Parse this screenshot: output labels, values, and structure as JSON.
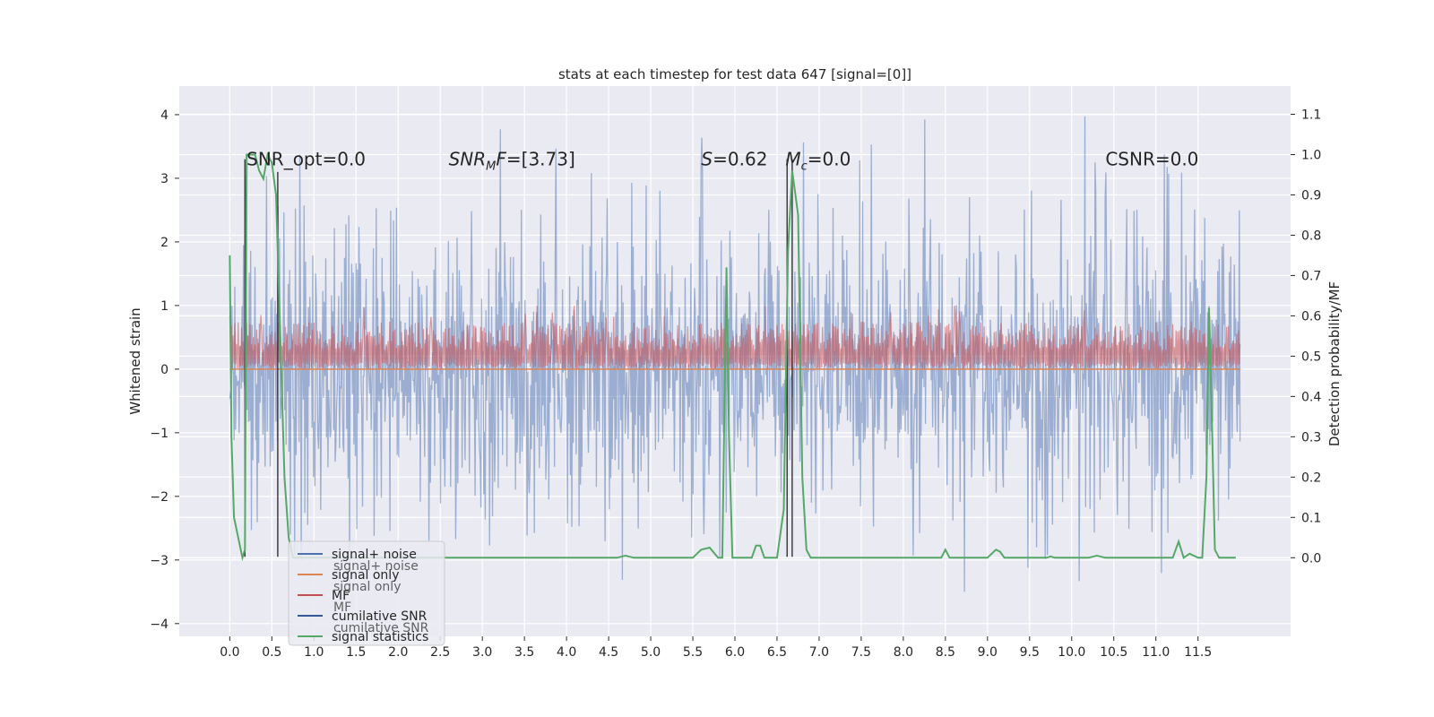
{
  "chart_data": {
    "type": "line",
    "title": "stats at each timestep for test data 647 [signal=[0]]",
    "ylabel_left": "Whitened strain",
    "ylabel_right": "Detection probability/MF",
    "xlim": [
      -0.6,
      12.6
    ],
    "ylim_left": [
      -4.2,
      4.45
    ],
    "ylim_right": [
      -0.195,
      1.17
    ],
    "x_ticks": [
      0.0,
      0.5,
      1.0,
      1.5,
      2.0,
      2.5,
      3.0,
      3.5,
      4.0,
      4.5,
      5.0,
      5.5,
      6.0,
      6.5,
      7.0,
      7.5,
      8.0,
      8.5,
      9.0,
      9.5,
      10.0,
      10.5,
      11.0,
      11.5
    ],
    "x_tick_labels": [
      "0.0",
      "0.5",
      "1.0",
      "1.5",
      "2.0",
      "2.5",
      "3.0",
      "3.5",
      "4.0",
      "4.5",
      "5.0",
      "5.5",
      "6.0",
      "6.5",
      "7.0",
      "7.5",
      "8.0",
      "8.5",
      "9.0",
      "9.5",
      "10.0",
      "10.5",
      "11.0",
      "11.5"
    ],
    "y_left_ticks": [
      -4,
      -3,
      -2,
      -1,
      0,
      1,
      2,
      3,
      4
    ],
    "y_left_tick_labels": [
      "−4",
      "−3",
      "−2",
      "−1",
      "0",
      "1",
      "2",
      "3",
      "4"
    ],
    "y_right_ticks": [
      0.0,
      0.1,
      0.2,
      0.3,
      0.4,
      0.5,
      0.6,
      0.7,
      0.8,
      0.9,
      1.0,
      1.1
    ],
    "y_right_tick_labels": [
      "0.0",
      "0.1",
      "0.2",
      "0.3",
      "0.4",
      "0.5",
      "0.6",
      "0.7",
      "0.8",
      "0.9",
      "1.0",
      "1.1"
    ],
    "grid": true,
    "legend_position": "bottom-left",
    "colors": {
      "signal_noise": "#4c72b0",
      "signal_only": "#dd8452",
      "mf": "#c44e52",
      "cumulative_snr": "#345896",
      "signal_statistics": "#55a868",
      "axes_bg": "#eaeaf2",
      "grid": "#ffffff",
      "marker_lines": "#333333"
    },
    "series": [
      {
        "name": "signal+ noise",
        "axis": "left",
        "style": "dense_noise",
        "x_range": [
          0.0,
          12.0
        ],
        "typical_range": [
          -2.0,
          2.0
        ],
        "extremes": [
          -3.5,
          4.1
        ]
      },
      {
        "name": "signal only",
        "axis": "left",
        "style": "flat",
        "x": [
          0.0,
          12.0
        ],
        "y": [
          0.0,
          0.0
        ]
      },
      {
        "name": "MF",
        "axis": "left",
        "style": "dense_band",
        "x_range": [
          0.0,
          12.0
        ],
        "typical_range": [
          0.0,
          0.75
        ],
        "extremes": [
          0.0,
          1.0
        ]
      },
      {
        "name": "cumilative SNR",
        "axis": "left",
        "style": "none",
        "x": [],
        "y": []
      },
      {
        "name": "signal statistics",
        "axis": "right",
        "style": "line",
        "x": [
          0.0,
          0.02,
          0.05,
          0.1,
          0.15,
          0.18,
          0.2,
          0.25,
          0.3,
          0.35,
          0.4,
          0.45,
          0.5,
          0.55,
          0.6,
          0.65,
          0.7,
          0.75,
          0.8,
          1.0,
          2.0,
          3.0,
          4.0,
          4.6,
          4.7,
          4.8,
          5.0,
          5.5,
          5.6,
          5.7,
          5.8,
          5.85,
          5.9,
          5.93,
          5.97,
          6.0,
          6.1,
          6.15,
          6.2,
          6.25,
          6.3,
          6.35,
          6.4,
          6.5,
          6.58,
          6.63,
          6.68,
          6.75,
          6.8,
          6.85,
          6.9,
          7.0,
          8.0,
          8.45,
          8.5,
          8.55,
          8.6,
          9.0,
          9.1,
          9.15,
          9.2,
          9.3,
          9.7,
          9.75,
          9.8,
          10.2,
          10.3,
          10.4,
          10.9,
          11.0,
          11.1,
          11.2,
          11.27,
          11.33,
          11.4,
          11.5,
          11.55,
          11.6,
          11.63,
          11.67,
          11.7,
          11.75,
          11.8,
          11.95
        ],
        "y": [
          0.75,
          0.3,
          0.1,
          0.05,
          0.0,
          0.02,
          1.0,
          1.0,
          1.0,
          0.96,
          0.94,
          1.0,
          0.98,
          0.9,
          0.55,
          0.2,
          0.05,
          0.0,
          0.0,
          0.0,
          0.0,
          0.0,
          0.0,
          0.0,
          0.005,
          0.0,
          0.0,
          0.0,
          0.02,
          0.025,
          0.0,
          0.0,
          0.72,
          0.3,
          0.0,
          0.0,
          0.0,
          0.0,
          0.0,
          0.03,
          0.03,
          0.0,
          0.0,
          0.0,
          0.12,
          0.76,
          0.96,
          0.85,
          0.2,
          0.02,
          0.0,
          0.0,
          0.0,
          0.0,
          0.02,
          0.0,
          0.0,
          0.0,
          0.02,
          0.015,
          0.0,
          0.0,
          0.0,
          0.003,
          0.0,
          0.0,
          0.005,
          0.0,
          0.0,
          0.0,
          0.0,
          0.0,
          0.04,
          0.0,
          0.01,
          0.0,
          0.0,
          0.2,
          0.62,
          0.3,
          0.02,
          0.0,
          0.0,
          0.0
        ]
      }
    ],
    "marker_lines": [
      {
        "x": 0.18,
        "y_from": -2.95,
        "y_to": 3.3
      },
      {
        "x": 0.57,
        "y_from": -2.95,
        "y_to": 3.1
      },
      {
        "x": 6.62,
        "y_from": -2.95,
        "y_to": 3.3
      },
      {
        "x": 6.68,
        "y_from": -2.95,
        "y_to": 3.3
      }
    ],
    "annotations": [
      {
        "text": "SNR_opt=0.0",
        "x": 0.2,
        "y": 3.2
      },
      {
        "text": "SNR_MF=[3.73]",
        "x": 2.6,
        "y": 3.2,
        "main": "SNR",
        "sub": "M",
        "rest": "F=[3.73]",
        "italic": true
      },
      {
        "text": "S=0.62",
        "x": 5.6,
        "y": 3.2,
        "main": "S",
        "rest": "=0.62",
        "italic_main": true
      },
      {
        "text": "M_c=0.0",
        "x": 6.6,
        "y": 3.2,
        "main": "M",
        "sub": "c",
        "rest": "=0.0",
        "italic_main": true
      },
      {
        "text": "CSNR=0.0",
        "x": 10.4,
        "y": 3.2
      }
    ],
    "legend": [
      {
        "label": "signal+ noise",
        "color_key": "signal_noise"
      },
      {
        "label": "signal only",
        "color_key": "signal_only"
      },
      {
        "label": "MF",
        "color_key": "mf"
      },
      {
        "label": "cumilative SNR",
        "color_key": "cumulative_snr"
      },
      {
        "label": "signal statistics",
        "color_key": "signal_statistics"
      }
    ],
    "legend_ghost": [
      {
        "label": "signal+ noise",
        "color_key": "signal_noise"
      },
      {
        "label": "signal only",
        "color_key": "signal_only"
      },
      {
        "label": "MF",
        "color_key": "mf"
      },
      {
        "label": "cumilative SNR",
        "color_key": "cumulative_snr"
      }
    ]
  }
}
